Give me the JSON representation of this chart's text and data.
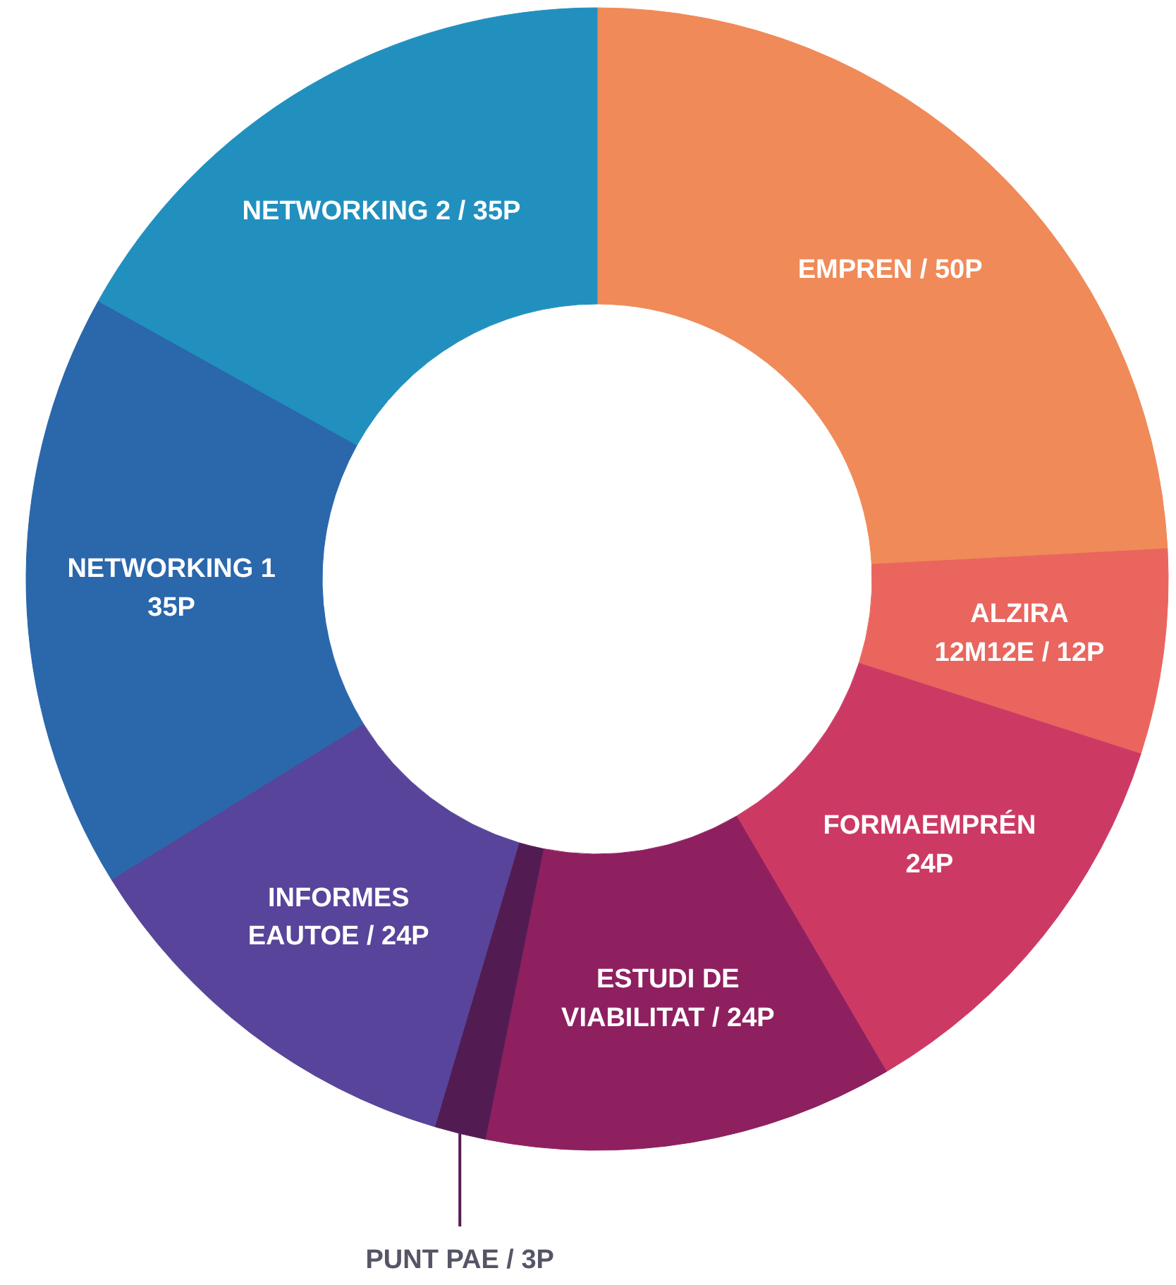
{
  "chart_data": {
    "type": "donut",
    "categories": [
      "EMPREN / 50P",
      "ALZIRA\n12M12E / 12P",
      "FORMAEMPRÉN\n24P",
      "ESTUDI DE\nVIABILITAT / 24P",
      "PUNT PAE / 3P",
      "INFORMES\nEAUTOE / 24P",
      "NETWORKING 1\n35P",
      "NETWORKING 2 / 35P"
    ],
    "values": [
      50,
      12,
      24,
      24,
      3,
      24,
      35,
      35
    ],
    "colors": [
      "#f08a58",
      "#e9655e",
      "#cc3a64",
      "#8e2060",
      "#521c52",
      "#58449a",
      "#2a67ab",
      "#2190bf"
    ],
    "legend": false
  }
}
